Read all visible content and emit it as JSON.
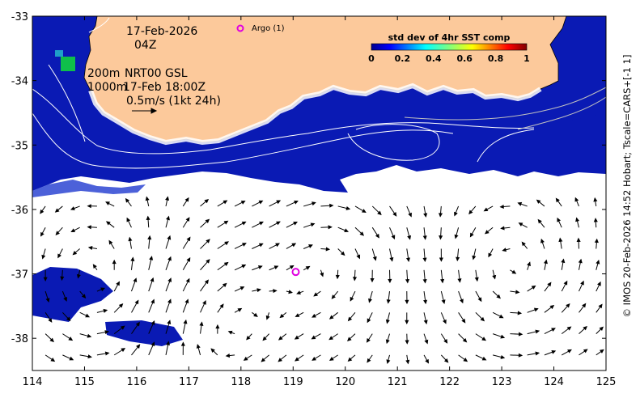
{
  "map": {
    "lon_ticks": [
      "114",
      "115",
      "116",
      "117",
      "118",
      "119",
      "120",
      "121",
      "122",
      "123",
      "124",
      "125"
    ],
    "lat_ticks": [
      "-33",
      "-34",
      "-35",
      "-36",
      "-37",
      "-38"
    ],
    "lon_range": [
      114,
      125
    ],
    "lat_range": [
      -38.5,
      -33
    ],
    "colors": {
      "land": "#fcc99b",
      "sst_deep": "#0000a0",
      "sst_mid": "#1530c8",
      "sst_high": "#0fbf4a",
      "contour": "#ffffff",
      "vectors": "#000000",
      "argo": "#e000e0"
    }
  },
  "annotations": {
    "date": "17-Feb-2026",
    "time": "04Z",
    "depth_200": "200m",
    "product": "NRT00 GSL",
    "depth_1000": "1000m",
    "valid_time": "17-Feb 18:00Z",
    "vector_scale": "0.5m/s (1kt 24h)"
  },
  "argo": {
    "legend_label": "Argo (1)",
    "floats": [
      {
        "lon": 119.05,
        "lat": -36.97
      }
    ]
  },
  "colorbar": {
    "title": "std dev of 4hr SST comp",
    "ticks": [
      "0",
      "0.2",
      "0.4",
      "0.6",
      "0.8",
      "1"
    ]
  },
  "credit": "© IMOS 20-Feb-2026 14:52 Hobart; Tscale=CARS+[-1 1]"
}
